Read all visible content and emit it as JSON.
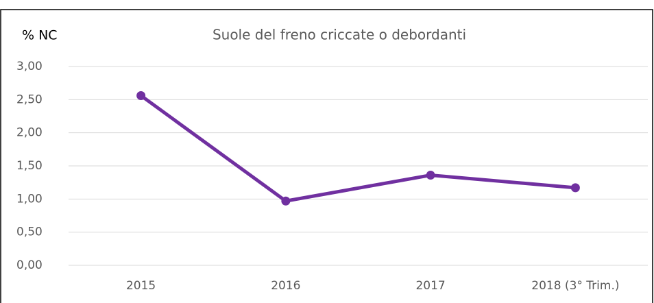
{
  "chart_data": {
    "type": "line",
    "title": "Suole del freno criccate o debordanti",
    "y_label": "% NC",
    "categories": [
      "2015",
      "2016",
      "2017",
      "2018 (3° Trim.)"
    ],
    "series": [
      {
        "name": "% NC",
        "color": "#7030a0",
        "values": [
          2.56,
          0.97,
          1.36,
          1.17
        ]
      }
    ],
    "ylim": [
      0,
      3
    ],
    "yticks": [
      {
        "value": 0,
        "label": "0,00"
      },
      {
        "value": 0.5,
        "label": "0,50"
      },
      {
        "value": 1,
        "label": "1,00"
      },
      {
        "value": 1.5,
        "label": "1,50"
      },
      {
        "value": 2,
        "label": "2,00"
      },
      {
        "value": 2.5,
        "label": "2,50"
      },
      {
        "value": 3,
        "label": "3,00"
      }
    ],
    "grid": true
  }
}
